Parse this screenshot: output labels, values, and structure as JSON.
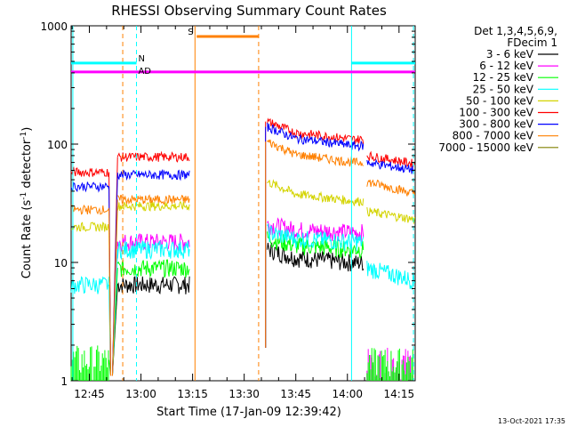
{
  "chart_data": {
    "type": "line",
    "title": "RHESSI Observing Summary Count Rates",
    "xlabel": "Start Time (17-Jan-09 12:39:42)",
    "ylabel_main": "Count Rate (s",
    "ylabel_sup1": "-1",
    "ylabel_mid": " detector",
    "ylabel_sup2": "-1",
    "ylabel_end": ")",
    "yscale": "log",
    "ylim": [
      1,
      1000
    ],
    "xlim_minutes": [
      0,
      100
    ],
    "x_ticks": [
      {
        "label": "12:45",
        "minute": 5.3
      },
      {
        "label": "13:00",
        "minute": 20.3
      },
      {
        "label": "13:15",
        "minute": 35.3
      },
      {
        "label": "13:30",
        "minute": 50.3
      },
      {
        "label": "13:45",
        "minute": 65.3
      },
      {
        "label": "14:00",
        "minute": 80.3
      },
      {
        "label": "14:15",
        "minute": 95.3
      }
    ],
    "y_ticks": [
      {
        "label": "1",
        "value": 1
      },
      {
        "label": "10",
        "value": 10
      },
      {
        "label": "100",
        "value": 100
      },
      {
        "label": "1000",
        "value": 1000
      }
    ],
    "legend_header": [
      "Det 1,3,4,5,6,9,",
      "FDecim 1"
    ],
    "series": [
      {
        "name": "3 - 6 keV",
        "color": "#000000",
        "pre": null,
        "mid": 6.5,
        "post": [
          13,
          11,
          10
        ],
        "tail": null
      },
      {
        "name": "6 - 12 keV",
        "color": "#ff00ff",
        "pre": null,
        "mid": 15,
        "post": [
          21,
          19,
          18
        ],
        "tail": [
          1.5,
          1.6
        ]
      },
      {
        "name": "12 - 25 keV",
        "color": "#00ff00",
        "pre": 1.5,
        "mid": 9,
        "post": [
          16,
          14,
          13
        ],
        "tail": [
          1.4,
          1.5
        ]
      },
      {
        "name": "25 - 50 keV",
        "color": "#00ffff",
        "pre": 6.5,
        "mid": 13,
        "post": [
          18,
          16,
          15
        ],
        "tail": [
          9,
          7
        ]
      },
      {
        "name": "50 - 100 keV",
        "color": "#d4d400",
        "pre": 20,
        "mid": 30,
        "post": [
          48,
          38,
          33
        ],
        "tail": [
          27,
          23
        ]
      },
      {
        "name": "100 - 300 keV",
        "color": "#ff0000",
        "pre": 58,
        "mid": 78,
        "post": [
          155,
          125,
          110
        ],
        "tail": [
          80,
          68
        ]
      },
      {
        "name": "300 - 800 keV",
        "color": "#0000ff",
        "pre": 44,
        "mid": 55,
        "post": [
          140,
          112,
          97
        ],
        "tail": [
          70,
          60
        ]
      },
      {
        "name": "800 - 7000 keV",
        "color": "#ff8000",
        "pre": 28,
        "mid": 34,
        "post": [
          105,
          82,
          70
        ],
        "tail": [
          48,
          38
        ]
      },
      {
        "name": "7000 - 15000 keV",
        "color": "#808000",
        "pre": null,
        "mid": null,
        "post": null,
        "tail": null
      }
    ],
    "flags": [
      {
        "label": "N",
        "color": "#00ffff",
        "segments": [
          [
            0,
            19
          ],
          [
            81.5,
            100
          ]
        ],
        "level": 0.895
      },
      {
        "label": "AD",
        "color": "#ff00ff",
        "segments": [
          [
            0,
            100
          ]
        ],
        "level": 0.87
      },
      {
        "label": "S",
        "color": "#ff8000",
        "segments": [
          [
            36.5,
            54.5
          ]
        ],
        "level": 0.97
      }
    ],
    "grid": false
  },
  "footer": {
    "timestamp": "13-Oct-2021 17:35"
  }
}
